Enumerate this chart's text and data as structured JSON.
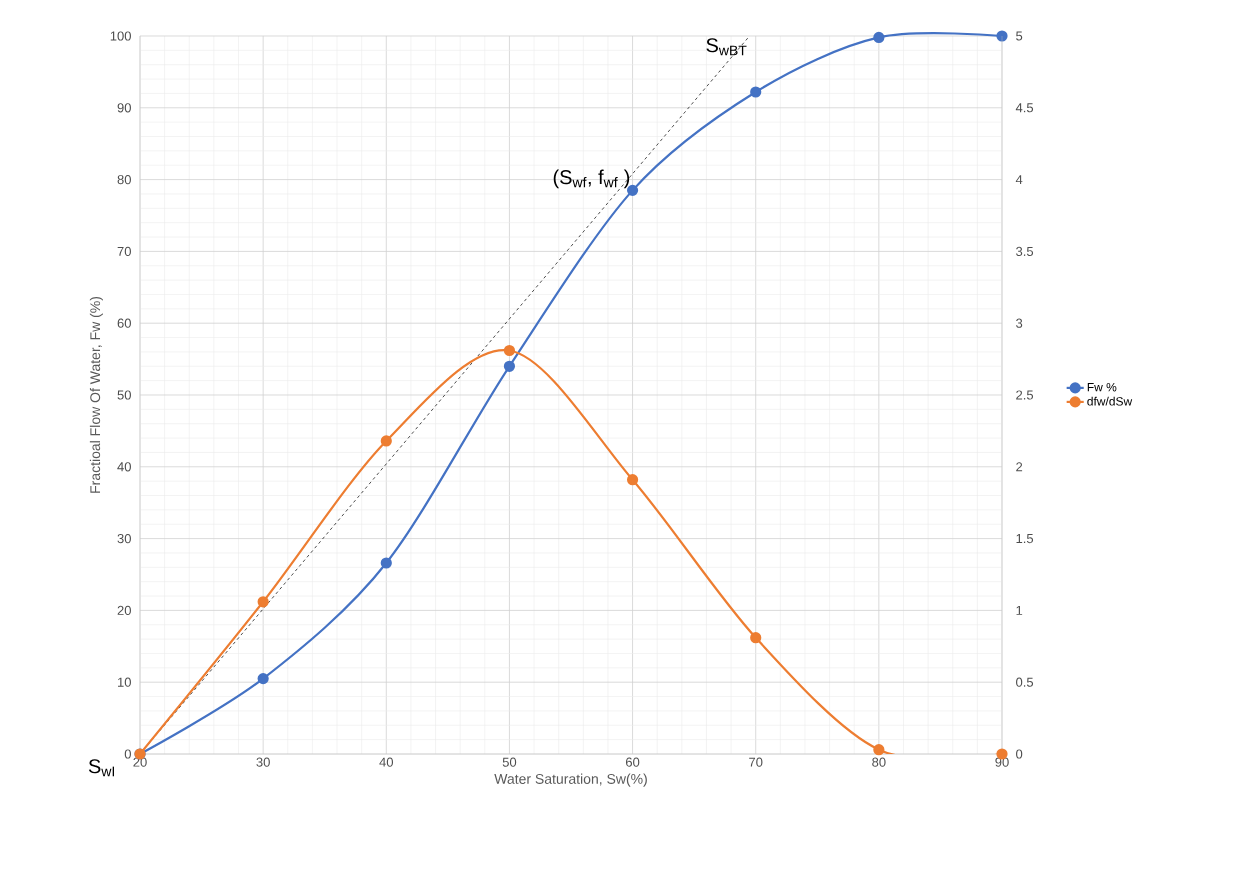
{
  "chart_data": {
    "type": "line",
    "xlabel": "Water Saturation, Sw(%)",
    "ylabel": "Fractioal Flow Of Water, Fw (%)",
    "x": [
      20,
      30,
      40,
      50,
      60,
      70,
      80,
      90
    ],
    "series": [
      {
        "name": "Fw %",
        "color": "#4472c4",
        "values": [
          0,
          10.5,
          26.6,
          54,
          78.5,
          92.2,
          99.8,
          100
        ]
      },
      {
        "name": "dfw/dSw",
        "color": "#ed7d31",
        "axis": "y2",
        "values": [
          0,
          1.06,
          2.18,
          2.81,
          1.91,
          0.81,
          0.03,
          0
        ]
      },
      {
        "type": "line",
        "color": "#000000",
        "line_style": "dashed",
        "marker": "none",
        "x": [
          20,
          69.5
        ],
        "values": [
          0,
          100
        ]
      }
    ],
    "xlim": [
      20,
      90
    ],
    "xticks": [
      20,
      30,
      40,
      50,
      60,
      70,
      80,
      90
    ],
    "ylim": [
      0,
      100
    ],
    "yticks": [
      0,
      10,
      20,
      30,
      40,
      50,
      60,
      70,
      80,
      90,
      100
    ],
    "y2lim": [
      0,
      5
    ],
    "y2ticks": [
      0,
      0.5,
      1,
      1.5,
      2,
      2.5,
      3,
      3.5,
      4,
      4.5,
      5
    ],
    "annotations": [
      {
        "text": "S$_{wI}$",
        "x": 20,
        "y": 0
      },
      {
        "text": "(S$_{wf}$, f$_{wf}$ )",
        "x": 60,
        "y": 78.5
      },
      {
        "text": "S$_{wBT}$",
        "x": 69.5,
        "y": 100
      }
    ],
    "grid": true,
    "legend": "right",
    "marker": "circle",
    "line_style": "solid"
  }
}
